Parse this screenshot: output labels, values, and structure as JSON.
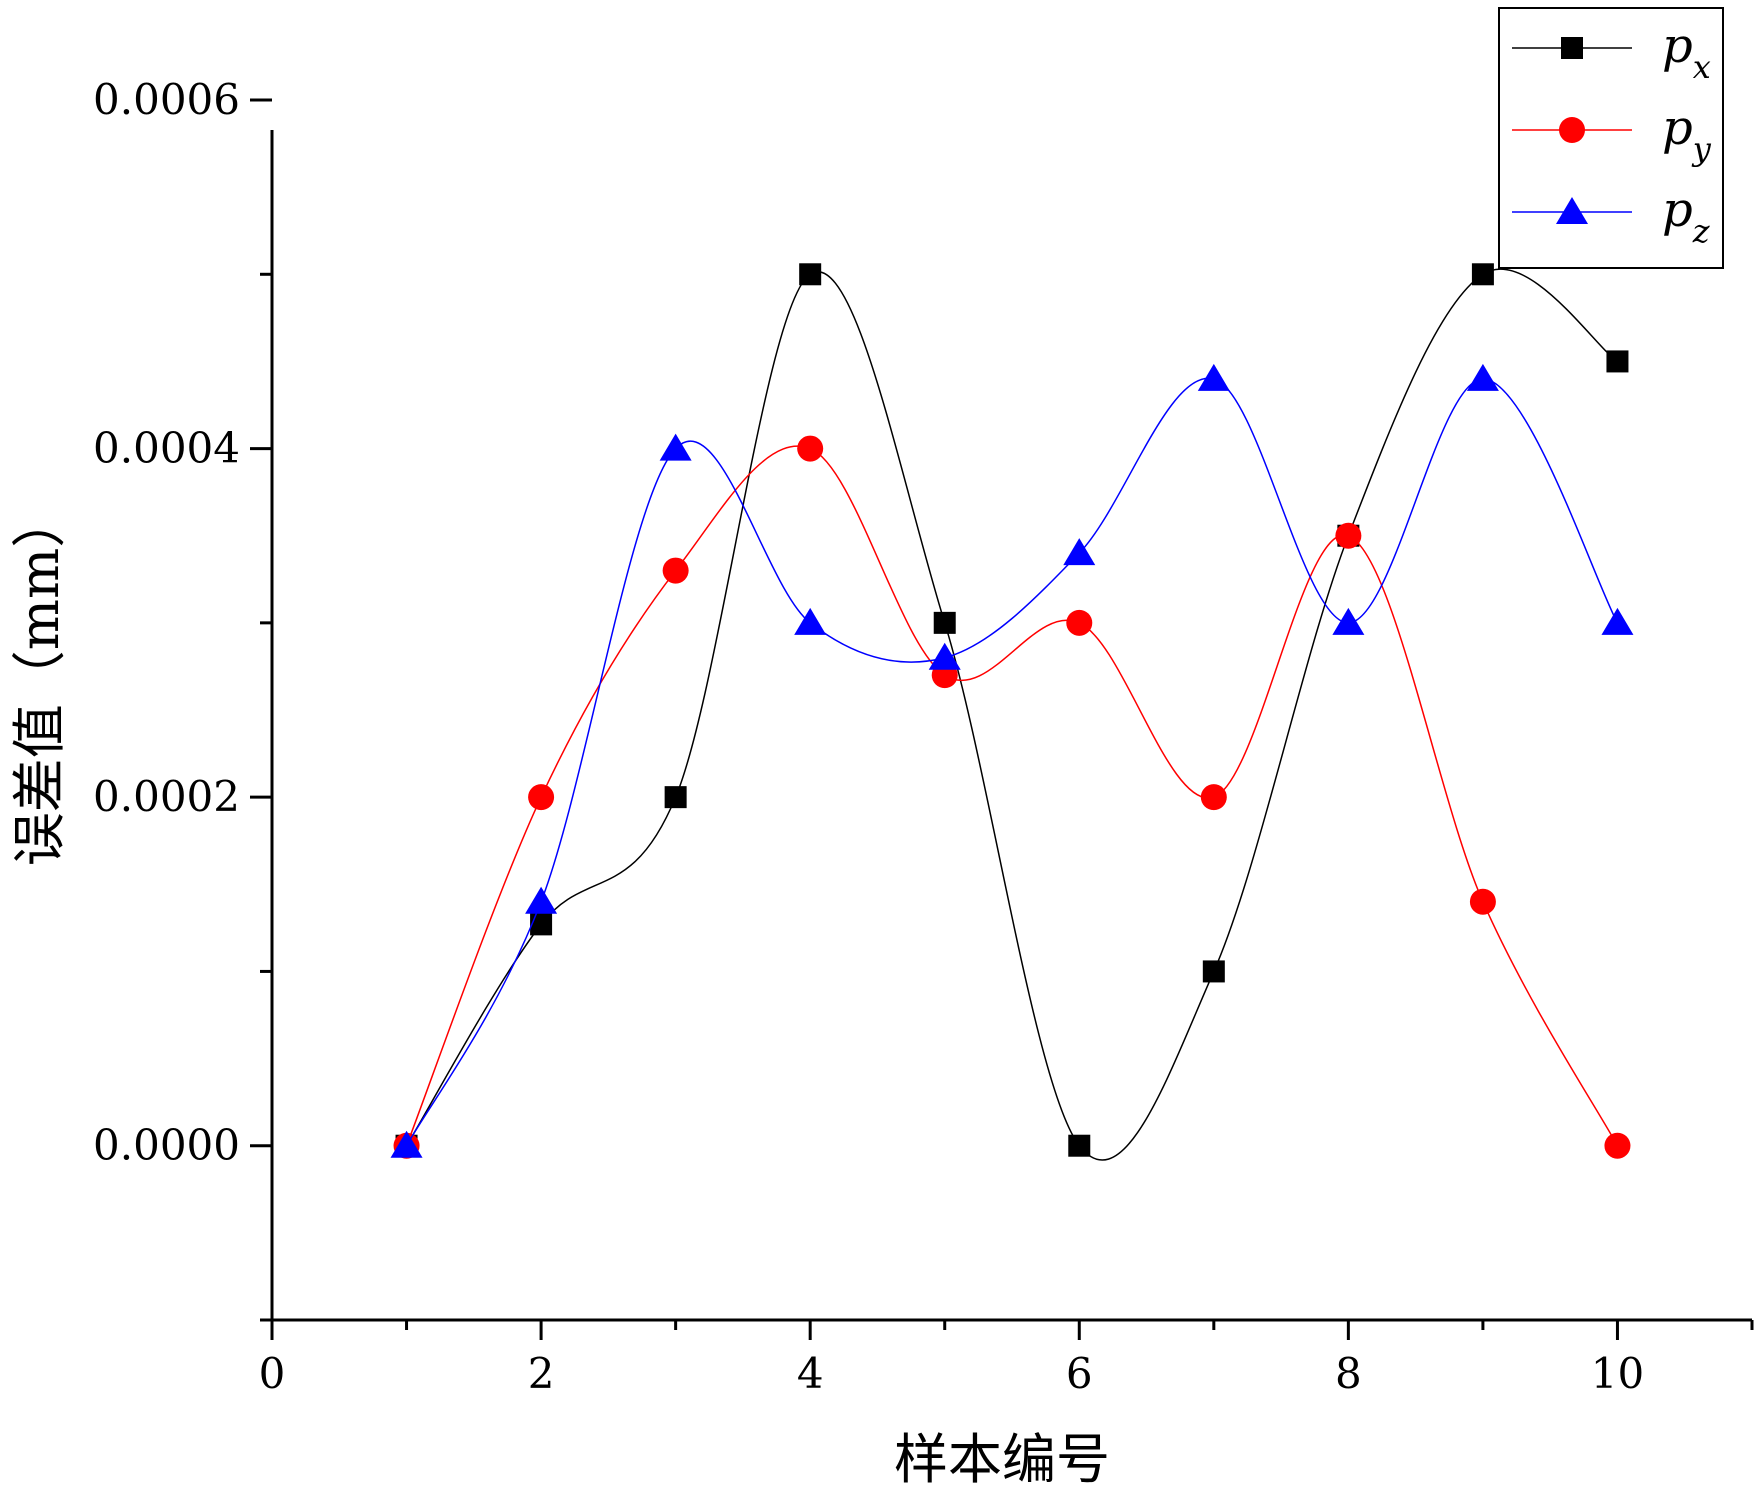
{
  "chart_data": {
    "type": "line",
    "title": "",
    "xlabel": "样本编号",
    "ylabel": "误差值（mm）",
    "xlim": [
      0,
      11
    ],
    "ylim": [
      -0.0001,
      0.0006
    ],
    "x_ticks": [
      0,
      2,
      4,
      6,
      8,
      10
    ],
    "x_tick_labels": [
      "0",
      "2",
      "4",
      "6",
      "8",
      "10"
    ],
    "y_ticks": [
      0.0,
      0.0002,
      0.0004,
      0.0006
    ],
    "y_tick_labels": [
      "0.0000",
      "0.0002",
      "0.0004",
      "0.0006"
    ],
    "grid": false,
    "legend_position": "top-right",
    "x": [
      1,
      2,
      3,
      4,
      5,
      6,
      7,
      8,
      9,
      10
    ],
    "series": [
      {
        "name": "p",
        "subscript": "x",
        "color": "#000000",
        "marker": "square",
        "values": [
          0.0,
          0.000127,
          0.0002,
          0.0005,
          0.0003,
          0.0,
          0.0001,
          0.00035,
          0.0005,
          0.00045
        ]
      },
      {
        "name": "p",
        "subscript": "y",
        "color": "#ff0000",
        "marker": "circle",
        "values": [
          0.0,
          0.0002,
          0.00033,
          0.0004,
          0.00027,
          0.0003,
          0.0002,
          0.00035,
          0.00014,
          0.0
        ]
      },
      {
        "name": "p",
        "subscript": "z",
        "color": "#0000ff",
        "marker": "triangle",
        "values": [
          0.0,
          0.00014,
          0.0004,
          0.0003,
          0.00028,
          0.00034,
          0.00044,
          0.0003,
          0.00044,
          0.0003
        ]
      }
    ]
  }
}
